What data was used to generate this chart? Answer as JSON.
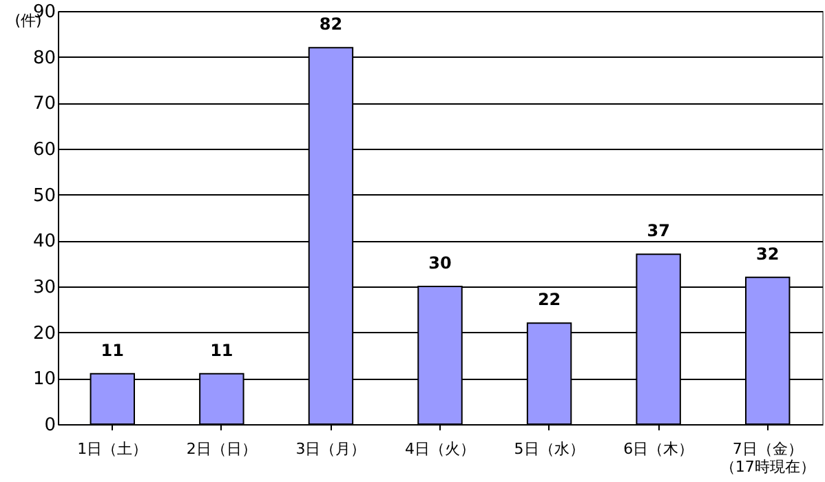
{
  "chart_data": {
    "type": "bar",
    "ylabel": "(件)",
    "categories": [
      "1日（土）",
      "2日（日）",
      "3日（月）",
      "4日（火）",
      "5日（水）",
      "6日（木）",
      "7日（金）（17時現在）"
    ],
    "values": [
      11,
      11,
      82,
      30,
      22,
      37,
      32
    ],
    "color": "#9999ff",
    "ylim": [
      0,
      90
    ],
    "yticks": [
      0,
      10,
      20,
      30,
      40,
      50,
      60,
      70,
      80,
      90
    ],
    "grid": "y",
    "data_labels": true
  }
}
